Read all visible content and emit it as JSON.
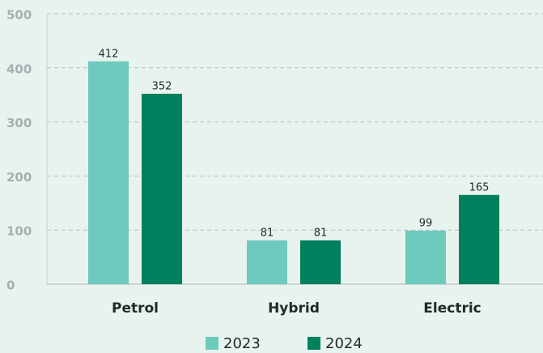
{
  "chart_data": {
    "type": "bar",
    "categories": [
      "Petrol",
      "Hybrid",
      "Electric"
    ],
    "series": [
      {
        "name": "2023",
        "color": "#6ecabd",
        "values": [
          412,
          81,
          99
        ]
      },
      {
        "name": "2024",
        "color": "#00805c",
        "values": [
          352,
          81,
          165
        ]
      }
    ],
    "ylim": [
      0,
      500
    ],
    "yticks": [
      0,
      100,
      200,
      300,
      400,
      500
    ],
    "grid": true,
    "legend": "bottom"
  }
}
